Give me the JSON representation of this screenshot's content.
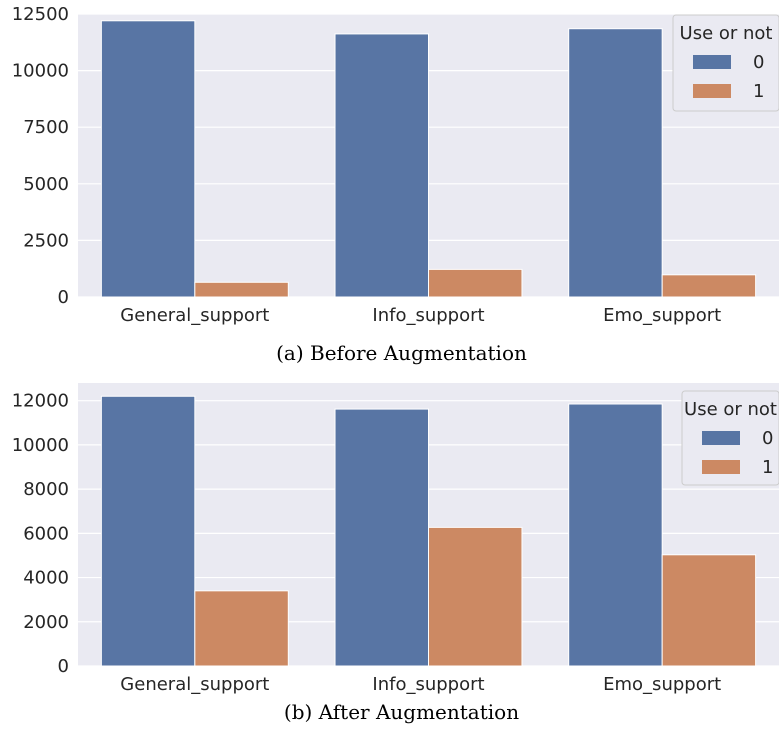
{
  "colors": {
    "series_0": "#5875a4",
    "series_1": "#cc8963",
    "plot_bg": "#eaeaf2",
    "grid": "#ffffff"
  },
  "chart_data": [
    {
      "type": "bar",
      "caption": "(a) Before Augmentation",
      "categories": [
        "General_support",
        "Info_support",
        "Emo_support"
      ],
      "legend_title": "Use or not",
      "legend_position": "top-right",
      "series": [
        {
          "name": "0",
          "values": [
            12200,
            11620,
            11850
          ]
        },
        {
          "name": "1",
          "values": [
            650,
            1220,
            980
          ]
        }
      ],
      "ylim": [
        0,
        12500
      ],
      "yticks": [
        0,
        2500,
        5000,
        7500,
        10000,
        12500
      ],
      "grid": true
    },
    {
      "type": "bar",
      "caption": "(b) After Augmentation",
      "categories": [
        "General_support",
        "Info_support",
        "Emo_support"
      ],
      "legend_title": "Use or not",
      "legend_position": "top-right",
      "series": [
        {
          "name": "0",
          "values": [
            12200,
            11620,
            11850
          ]
        },
        {
          "name": "1",
          "values": [
            3400,
            6270,
            5030
          ]
        }
      ],
      "ylim": [
        0,
        12800
      ],
      "yticks": [
        0,
        2000,
        4000,
        6000,
        8000,
        10000,
        12000
      ],
      "grid": true
    }
  ]
}
